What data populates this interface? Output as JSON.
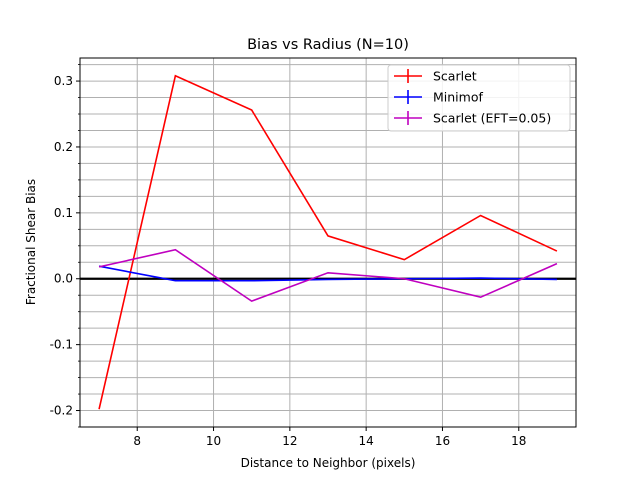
{
  "chart_data": {
    "type": "line",
    "title": "Bias vs Radius (N=10)",
    "xlabel": "Distance to Neighbor (pixels)",
    "ylabel": "Fractional Shear Bias",
    "xlim": [
      6.5,
      19.5
    ],
    "ylim": [
      -0.225,
      0.335
    ],
    "x_ticks": [
      8,
      10,
      12,
      14,
      16,
      18
    ],
    "x_tick_labels": [
      "8",
      "10",
      "12",
      "14",
      "16",
      "18"
    ],
    "y_ticks": [
      -0.2,
      -0.1,
      0.0,
      0.1,
      0.2,
      0.3
    ],
    "y_tick_labels": [
      "-0.2",
      "-0.1",
      "0.0",
      "0.1",
      "0.2",
      "0.3"
    ],
    "grid": true,
    "minor_grid_y": true,
    "reference_line_y": 0.0,
    "legend_placement": "top-right",
    "x": [
      7,
      9,
      11,
      13,
      15,
      17,
      19
    ],
    "series": [
      {
        "name": "Scarlet",
        "color": "#ff0000",
        "values": [
          -0.198,
          0.308,
          0.256,
          0.065,
          0.029,
          0.096,
          0.042
        ]
      },
      {
        "name": "Minimof",
        "color": "#0000ff",
        "values": [
          0.019,
          -0.003,
          -0.003,
          -0.001,
          0.0,
          0.001,
          -0.001
        ]
      },
      {
        "name": "Scarlet (EFT=0.05)",
        "color": "#bf00bf",
        "values": [
          0.018,
          0.044,
          -0.034,
          0.009,
          0.0,
          -0.028,
          0.023
        ]
      }
    ]
  }
}
